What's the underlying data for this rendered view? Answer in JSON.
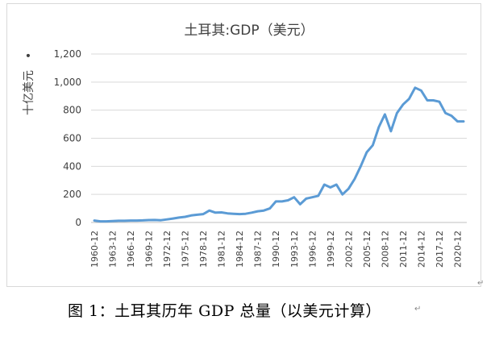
{
  "chart_data": {
    "type": "line",
    "title": "土耳其:GDP（美元）",
    "ylabel": "十亿美元",
    "xlabel": "",
    "ylim": [
      0,
      1200
    ],
    "yticks": [
      0,
      200,
      400,
      600,
      800,
      1000,
      1200
    ],
    "ytick_labels": [
      "0",
      "200",
      "400",
      "600",
      "800",
      "1,000",
      "1,200"
    ],
    "grid": "horizontal",
    "legend": "none",
    "line_color": "#5b9bd5",
    "x_tick_labels": [
      "1960-12",
      "1963-12",
      "1966-12",
      "1969-12",
      "1972-12",
      "1975-12",
      "1978-12",
      "1981-12",
      "1984-12",
      "1987-12",
      "1990-12",
      "1993-12",
      "1996-12",
      "1999-12",
      "2002-12",
      "2005-12",
      "2008-12",
      "2011-12",
      "2014-12",
      "2017-12",
      "2020-12"
    ],
    "x": [
      1960,
      1961,
      1962,
      1963,
      1964,
      1965,
      1966,
      1967,
      1968,
      1969,
      1970,
      1971,
      1972,
      1973,
      1974,
      1975,
      1976,
      1977,
      1978,
      1979,
      1980,
      1981,
      1982,
      1983,
      1984,
      1985,
      1986,
      1987,
      1988,
      1989,
      1990,
      1991,
      1992,
      1993,
      1994,
      1995,
      1996,
      1997,
      1998,
      1999,
      2000,
      2001,
      2002,
      2003,
      2004,
      2005,
      2006,
      2007,
      2008,
      2009,
      2010,
      2011,
      2012,
      2013,
      2014,
      2015,
      2016,
      2017,
      2018,
      2019,
      2020,
      2021
    ],
    "series": [
      {
        "values": [
          14,
          8,
          8,
          10,
          12,
          12,
          14,
          14,
          15,
          17,
          18,
          16,
          22,
          28,
          35,
          40,
          50,
          55,
          60,
          85,
          70,
          72,
          65,
          62,
          60,
          62,
          70,
          80,
          85,
          100,
          150,
          150,
          158,
          180,
          130,
          170,
          180,
          190,
          270,
          250,
          270,
          200,
          240,
          310,
          400,
          500,
          550,
          680,
          770,
          650,
          780,
          840,
          880,
          960,
          940,
          870,
          870,
          860,
          780,
          760,
          720,
          720
        ]
      }
    ]
  },
  "caption": "图 1：土耳其历年 GDP 总量（以美元计算）",
  "paragraph_mark": "↵"
}
